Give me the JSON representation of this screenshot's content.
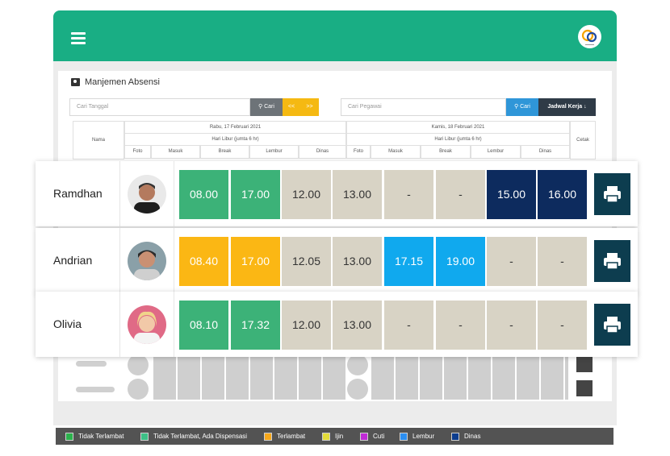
{
  "panel": {
    "title": "Manjemen Absensi"
  },
  "search_left": {
    "placeholder": "Cari Tanggal",
    "button": "Cari",
    "nav": "<<",
    "nav_next": ">>"
  },
  "search_right": {
    "placeholder": "Cari Pegawai",
    "button": "Cari",
    "schedule_button": "Jadwal Kerja"
  },
  "table_header": {
    "name_col": "Nama",
    "print_col": "Cetak",
    "days": [
      {
        "date": "Rabu, 17 Februari 2021",
        "type": "Hari Libur (jumta 6 hr)"
      },
      {
        "date": "Kamis, 18 Februari 2021",
        "type": "Hari Libur (jumta 6 hr)"
      }
    ],
    "sub_cols": [
      "Foto",
      "Masuk",
      "Break",
      "Lembur",
      "Dinas"
    ]
  },
  "rows": [
    {
      "name": "Ramdhan",
      "cells": [
        {
          "value": "08.00",
          "color": "#3cb278",
          "text": "#ffffff"
        },
        {
          "value": "17.00",
          "color": "#3cb278",
          "text": "#ffffff"
        },
        {
          "value": "12.00",
          "color": "#d8d3c5",
          "text": "#333333"
        },
        {
          "value": "13.00",
          "color": "#d8d3c5",
          "text": "#333333"
        },
        {
          "value": "-",
          "color": "#d8d3c5",
          "text": "#333333"
        },
        {
          "value": "-",
          "color": "#d8d3c5",
          "text": "#333333"
        },
        {
          "value": "15.00",
          "color": "#0d2b5e",
          "text": "#ffffff"
        },
        {
          "value": "16.00",
          "color": "#0d2b5e",
          "text": "#ffffff"
        }
      ]
    },
    {
      "name": "Andrian",
      "cells": [
        {
          "value": "08.40",
          "color": "#fbb714",
          "text": "#ffffff"
        },
        {
          "value": "17.00",
          "color": "#fbb714",
          "text": "#ffffff"
        },
        {
          "value": "12.05",
          "color": "#d8d3c5",
          "text": "#333333"
        },
        {
          "value": "13.00",
          "color": "#d8d3c5",
          "text": "#333333"
        },
        {
          "value": "17.15",
          "color": "#10a9ee",
          "text": "#ffffff"
        },
        {
          "value": "19.00",
          "color": "#10a9ee",
          "text": "#ffffff"
        },
        {
          "value": "-",
          "color": "#d8d3c5",
          "text": "#333333"
        },
        {
          "value": "-",
          "color": "#d8d3c5",
          "text": "#333333"
        }
      ]
    },
    {
      "name": "Olivia",
      "cells": [
        {
          "value": "08.10",
          "color": "#3cb278",
          "text": "#ffffff"
        },
        {
          "value": "17.32",
          "color": "#3cb278",
          "text": "#ffffff"
        },
        {
          "value": "12.00",
          "color": "#d8d3c5",
          "text": "#333333"
        },
        {
          "value": "13.00",
          "color": "#d8d3c5",
          "text": "#333333"
        },
        {
          "value": "-",
          "color": "#d8d3c5",
          "text": "#333333"
        },
        {
          "value": "-",
          "color": "#d8d3c5",
          "text": "#333333"
        },
        {
          "value": "-",
          "color": "#d8d3c5",
          "text": "#333333"
        },
        {
          "value": "-",
          "color": "#d8d3c5",
          "text": "#333333"
        }
      ]
    }
  ],
  "legend": [
    {
      "label": "Tidak Terlambat",
      "color": "#2bb24c"
    },
    {
      "label": "Tidak Terlambat, Ada Dispensasi",
      "color": "#3dbf86"
    },
    {
      "label": "Terlambat",
      "color": "#f7a81b"
    },
    {
      "label": "Ijin",
      "color": "#e4dc3a"
    },
    {
      "label": "Cuti",
      "color": "#c02ad6"
    },
    {
      "label": "Lembur",
      "color": "#2b8ef0"
    },
    {
      "label": "Dinas",
      "color": "#0d3d8e"
    }
  ],
  "colors": {
    "header_green": "#19ae84",
    "print_button": "#0d3d4f"
  }
}
